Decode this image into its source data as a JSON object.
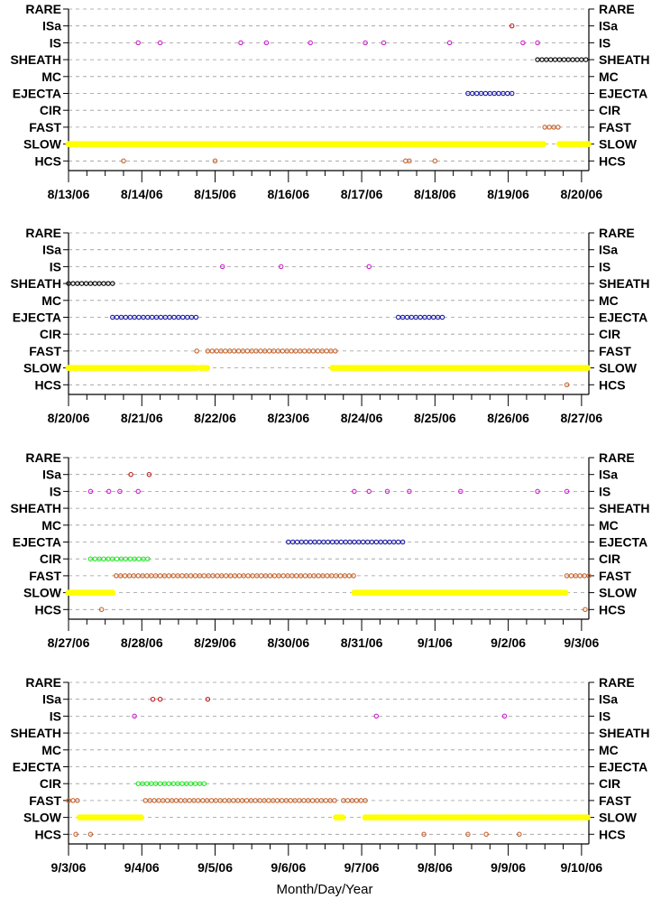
{
  "figure": {
    "xlabel": "Month/Day/Year"
  },
  "colors": {
    "yellow": "#ffff00",
    "orange": "#c8642c",
    "green": "#1ee81e",
    "blue": "#1c1ca8",
    "black": "#000000",
    "magenta": "#cc22cc",
    "red": "#c81818"
  },
  "chart_data": [
    {
      "type": "scatter",
      "categories": [
        "RARE",
        "ISa",
        "IS",
        "SHEATH",
        "MC",
        "EJECTA",
        "CIR",
        "FAST",
        "SLOW",
        "HCS"
      ],
      "x_ticks": [
        "8/13/06",
        "8/14/06",
        "8/15/06",
        "8/16/06",
        "8/17/06",
        "8/18/06",
        "8/19/06",
        "8/20/06"
      ],
      "xlim": [
        0,
        7.1
      ],
      "grid": "dashed horizontal",
      "points": [
        {
          "category": "ISa",
          "color": "red",
          "x": [
            6.05
          ]
        },
        {
          "category": "IS",
          "color": "magenta",
          "x": [
            0.95,
            1.25,
            2.35,
            2.7,
            3.3,
            4.05,
            4.3,
            5.2,
            6.2,
            6.4
          ]
        },
        {
          "category": "SHEATH",
          "color": "black",
          "step": 0.06,
          "ranges": [
            [
              6.4,
              7.1
            ]
          ]
        },
        {
          "category": "EJECTA",
          "color": "blue",
          "step": 0.06,
          "ranges": [
            [
              5.45,
              6.05
            ]
          ]
        },
        {
          "category": "FAST",
          "color": "orange",
          "step": 0.06,
          "ranges": [
            [
              6.5,
              6.7
            ]
          ]
        },
        {
          "category": "SLOW",
          "color": "yellow",
          "step": 0.03,
          "ranges": [
            [
              0,
              6.5
            ],
            [
              6.7,
              7.1
            ]
          ]
        },
        {
          "category": "HCS",
          "color": "orange",
          "x": [
            0.75,
            2.0,
            4.6,
            4.65,
            5.0
          ]
        }
      ]
    },
    {
      "type": "scatter",
      "categories": [
        "RARE",
        "ISa",
        "IS",
        "SHEATH",
        "MC",
        "EJECTA",
        "CIR",
        "FAST",
        "SLOW",
        "HCS"
      ],
      "x_ticks": [
        "8/20/06",
        "8/21/06",
        "8/22/06",
        "8/23/06",
        "8/24/06",
        "8/25/06",
        "8/26/06",
        "8/27/06"
      ],
      "xlim": [
        0,
        7.1
      ],
      "grid": "dashed horizontal",
      "points": [
        {
          "category": "IS",
          "color": "magenta",
          "x": [
            2.1,
            2.9,
            4.1
          ]
        },
        {
          "category": "SHEATH",
          "color": "black",
          "step": 0.06,
          "ranges": [
            [
              0,
              0.6
            ]
          ]
        },
        {
          "category": "EJECTA",
          "color": "blue",
          "step": 0.06,
          "ranges": [
            [
              0.6,
              1.75
            ],
            [
              4.5,
              5.1
            ]
          ]
        },
        {
          "category": "FAST",
          "color": "orange",
          "step": 0.06,
          "ranges": [
            [
              1.75,
              1.8
            ],
            [
              1.9,
              3.65
            ]
          ]
        },
        {
          "category": "SLOW",
          "color": "yellow",
          "step": 0.03,
          "ranges": [
            [
              0,
              1.75
            ],
            [
              1.8,
              1.9
            ],
            [
              3.6,
              7.1
            ]
          ]
        },
        {
          "category": "HCS",
          "color": "orange",
          "x": [
            6.8
          ]
        }
      ]
    },
    {
      "type": "scatter",
      "categories": [
        "RARE",
        "ISa",
        "IS",
        "SHEATH",
        "MC",
        "EJECTA",
        "CIR",
        "FAST",
        "SLOW",
        "HCS"
      ],
      "x_ticks": [
        "8/27/06",
        "8/28/06",
        "8/29/06",
        "8/30/06",
        "8/31/06",
        "9/1/06",
        "9/2/06",
        "9/3/06"
      ],
      "xlim": [
        0,
        7.1
      ],
      "grid": "dashed horizontal",
      "points": [
        {
          "category": "ISa",
          "color": "red",
          "x": [
            0.85,
            1.1
          ]
        },
        {
          "category": "IS",
          "color": "magenta",
          "x": [
            0.3,
            0.55,
            0.7,
            0.95,
            3.9,
            4.1,
            4.35,
            4.65,
            5.35,
            6.4,
            6.8
          ]
        },
        {
          "category": "EJECTA",
          "color": "blue",
          "step": 0.06,
          "ranges": [
            [
              3.0,
              4.6
            ]
          ]
        },
        {
          "category": "CIR",
          "color": "green",
          "step": 0.06,
          "ranges": [
            [
              0.3,
              1.1
            ]
          ]
        },
        {
          "category": "FAST",
          "color": "orange",
          "step": 0.06,
          "ranges": [
            [
              0.65,
              3.9
            ],
            [
              6.8,
              7.1
            ]
          ]
        },
        {
          "category": "SLOW",
          "color": "yellow",
          "step": 0.03,
          "ranges": [
            [
              0,
              0.6
            ],
            [
              3.9,
              6.8
            ]
          ]
        },
        {
          "category": "HCS",
          "color": "orange",
          "x": [
            0.45,
            7.05
          ]
        }
      ]
    },
    {
      "type": "scatter",
      "categories": [
        "RARE",
        "ISa",
        "IS",
        "SHEATH",
        "MC",
        "EJECTA",
        "CIR",
        "FAST",
        "SLOW",
        "HCS"
      ],
      "x_ticks": [
        "9/3/06",
        "9/4/06",
        "9/5/06",
        "9/6/06",
        "9/7/06",
        "9/8/06",
        "9/9/06",
        "9/10/06"
      ],
      "xlim": [
        0,
        7.1
      ],
      "grid": "dashed horizontal",
      "points": [
        {
          "category": "ISa",
          "color": "red",
          "x": [
            1.15,
            1.25,
            1.9
          ]
        },
        {
          "category": "IS",
          "color": "magenta",
          "x": [
            0.9,
            4.2,
            5.95
          ]
        },
        {
          "category": "CIR",
          "color": "green",
          "step": 0.06,
          "ranges": [
            [
              0.95,
              1.85
            ]
          ]
        },
        {
          "category": "FAST",
          "color": "orange",
          "step": 0.06,
          "ranges": [
            [
              0,
              0.15
            ],
            [
              1.05,
              3.65
            ],
            [
              3.75,
              4.05
            ]
          ]
        },
        {
          "category": "SLOW",
          "color": "yellow",
          "step": 0.03,
          "ranges": [
            [
              0.15,
              1.0
            ],
            [
              3.65,
              3.75
            ],
            [
              4.05,
              7.1
            ]
          ]
        },
        {
          "category": "HCS",
          "color": "orange",
          "x": [
            0.1,
            0.3,
            4.85,
            5.45,
            5.7,
            6.15
          ]
        }
      ]
    }
  ]
}
